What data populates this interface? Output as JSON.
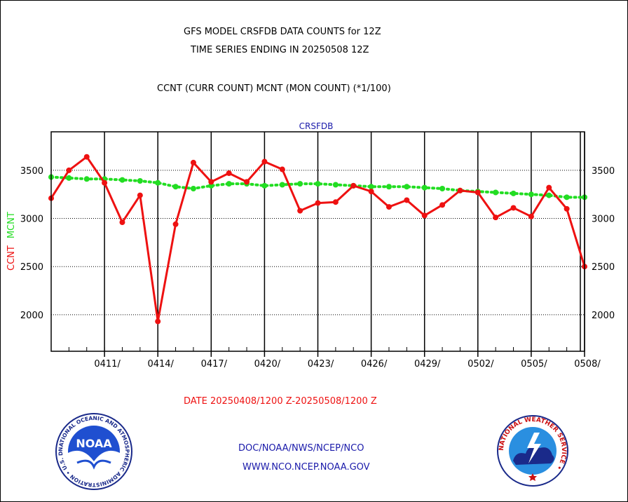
{
  "header": {
    "title_line1": "GFS MODEL CRSFDB DATA COUNTS for 12Z",
    "title_line2": "TIME SERIES ENDING IN 20250508 12Z",
    "subtitle": "CCNT (CURR COUNT) MCNT (MON COUNT) (*1/100)"
  },
  "footer": {
    "date_range": "DATE 20250408/1200 Z-20250508/1200 Z",
    "link_line1": "DOC/NOAA/NWS/NCEP/NCO",
    "link_line2": "WWW.NCO.NCEP.NOAA.GOV"
  },
  "logos": {
    "noaa_text": "NOAA",
    "noaa_ring_text": "NATIONAL OCEANIC AND ATMOSPHERIC ADMINISTRATION • U.S. DEPARTMENT OF COMMERCE •",
    "nws_ring_text": "NATIONAL WEATHER SERVICE •"
  },
  "colors": {
    "ccnt": "#ee1111",
    "mcnt": "#22dd22",
    "text_blue": "#1a1aaa",
    "text_red": "#ee1111"
  },
  "chart_data": {
    "type": "line",
    "title": "CRSFDB",
    "ylabel_ccnt": "CCNT",
    "ylabel_mcnt": "MCNT",
    "ylim": [
      1620,
      3900
    ],
    "yticks": [
      2000,
      2500,
      3000,
      3500
    ],
    "ytick_labels": [
      "2000",
      "2500",
      "3000",
      "3500"
    ],
    "grid": true,
    "x_start_date": "20250408/1200",
    "x_end_date": "20250508/1200",
    "xticks": [
      {
        "day": 3,
        "label": "0411/"
      },
      {
        "day": 6,
        "label": "0414/"
      },
      {
        "day": 9,
        "label": "0417/"
      },
      {
        "day": 12,
        "label": "0420/"
      },
      {
        "day": 15,
        "label": "0423/"
      },
      {
        "day": 18,
        "label": "0426/"
      },
      {
        "day": 21,
        "label": "0429/"
      },
      {
        "day": 24,
        "label": "0502/"
      },
      {
        "day": 27,
        "label": "0505/"
      },
      {
        "day": 30,
        "label": "0508/"
      }
    ],
    "x": [
      0,
      1,
      2,
      3,
      4,
      5,
      6,
      7,
      8,
      9,
      10,
      11,
      12,
      13,
      14,
      15,
      16,
      17,
      18,
      19,
      20,
      21,
      22,
      23,
      24,
      25,
      26,
      27,
      28,
      29,
      30
    ],
    "series": [
      {
        "name": "CCNT",
        "values": [
          3210,
          3500,
          3640,
          3370,
          2960,
          3240,
          1930,
          2940,
          3580,
          3380,
          3470,
          3380,
          3590,
          3510,
          3080,
          3160,
          3170,
          3340,
          3280,
          3120,
          3190,
          3030,
          3140,
          3290,
          3270,
          3010,
          3110,
          3020,
          3320,
          3100,
          2500
        ]
      },
      {
        "name": "MCNT",
        "values": [
          3430,
          3420,
          3410,
          3410,
          3400,
          3390,
          3370,
          3330,
          3310,
          3340,
          3360,
          3360,
          3340,
          3350,
          3360,
          3360,
          3350,
          3340,
          3330,
          3330,
          3330,
          3320,
          3310,
          3290,
          3280,
          3270,
          3260,
          3250,
          3240,
          3220,
          3220
        ]
      }
    ]
  }
}
